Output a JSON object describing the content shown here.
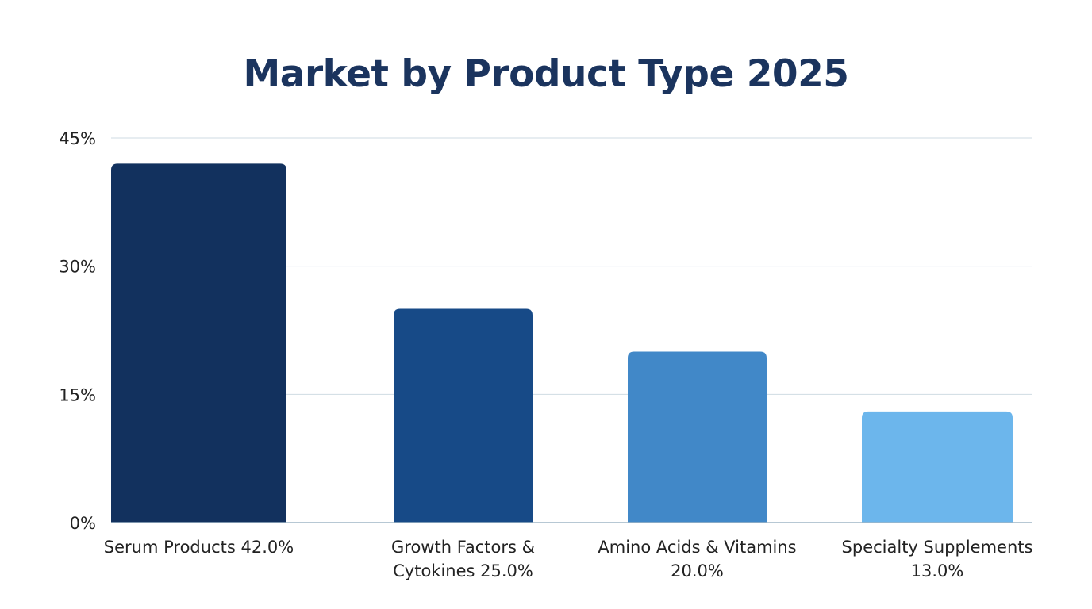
{
  "chart_data": {
    "type": "bar",
    "title": "Market by Product Type 2025",
    "xlabel": "",
    "ylabel": "",
    "ylim": [
      0,
      45
    ],
    "yticks": [
      0,
      15,
      30,
      45
    ],
    "ytick_labels": [
      "0%",
      "15%",
      "30%",
      "45%"
    ],
    "grid": true,
    "categories": [
      [
        "Serum Products 42.0%"
      ],
      [
        "Growth Factors &",
        "Cytokines 25.0%"
      ],
      [
        "Amino Acids & Vitamins",
        "20.0%"
      ],
      [
        "Specialty Supplements",
        "13.0%"
      ]
    ],
    "values": [
      42.0,
      25.0,
      20.0,
      13.0
    ],
    "colors": [
      "#12315e",
      "#174a87",
      "#4188c8",
      "#6cb6ec"
    ],
    "grid_color": "#cfdbe3"
  }
}
